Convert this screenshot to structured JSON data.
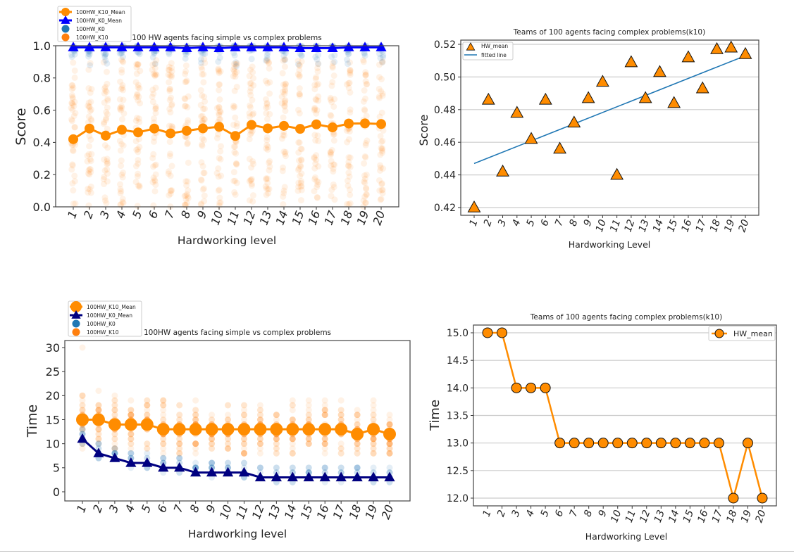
{
  "colors": {
    "orange": "#ff8c00",
    "scatter_orange": "#ff7f0e",
    "scatter_blue": "#1f77b4",
    "blue_mean_top": "#0000ff",
    "navy_mean_bottom": "#000080",
    "fit_line": "#1f77b4",
    "grid": "#cccccc"
  },
  "chart_data": [
    {
      "type": "line",
      "title": "100 HW agents facing simple vs complex problems",
      "xlabel": "Hardworking level",
      "ylabel": "Score",
      "ylim": [
        0,
        1
      ],
      "yticks": [
        "0.0",
        "0.2",
        "0.4",
        "0.6",
        "0.8",
        "1.0"
      ],
      "x": [
        "1",
        "2",
        "3",
        "4",
        "5",
        "6",
        "7",
        "8",
        "9",
        "10",
        "11",
        "12",
        "13",
        "14",
        "15",
        "16",
        "17",
        "18",
        "19",
        "20"
      ],
      "grid": false,
      "legend": "top-left outside",
      "legend_entries": [
        "100HW_K10_Mean",
        "100HW_K0_Mean",
        "100HW_K0",
        "100HW_K10"
      ],
      "series": [
        {
          "name": "100HW_K10_Mean",
          "values": [
            0.42,
            0.486,
            0.442,
            0.478,
            0.462,
            0.486,
            0.456,
            0.472,
            0.487,
            0.497,
            0.44,
            0.509,
            0.487,
            0.503,
            0.484,
            0.512,
            0.493,
            0.517,
            0.518,
            0.514
          ]
        },
        {
          "name": "100HW_K0_Mean",
          "values": [
            0.99,
            0.99,
            0.99,
            0.99,
            0.99,
            0.99,
            0.99,
            0.985,
            0.99,
            0.985,
            0.99,
            0.99,
            0.99,
            0.99,
            0.985,
            0.985,
            0.985,
            0.99,
            0.99,
            0.99
          ]
        }
      ],
      "scatter_series": [
        {
          "name": "100HW_K0",
          "range": [
            0.86,
            1.0
          ]
        },
        {
          "name": "100HW_K10",
          "range": [
            0.0,
            0.92
          ]
        }
      ]
    },
    {
      "type": "scatter",
      "title": "Teams of 100 agents facing complex problems(k10)",
      "xlabel": "Hardworking Level",
      "ylabel": "Score",
      "ylim": [
        0.415,
        0.523
      ],
      "yticks": [
        "0.42",
        "0.44",
        "0.46",
        "0.48",
        "0.50",
        "0.52"
      ],
      "x": [
        "1",
        "2",
        "3",
        "4",
        "5",
        "6",
        "7",
        "8",
        "9",
        "10",
        "11",
        "12",
        "13",
        "14",
        "15",
        "16",
        "17",
        "18",
        "19",
        "20"
      ],
      "grid": true,
      "legend": "top-left",
      "legend_entries": [
        "HW_mean",
        "fitted line"
      ],
      "series": [
        {
          "name": "HW_mean",
          "values": [
            0.42,
            0.486,
            0.442,
            0.478,
            0.462,
            0.486,
            0.456,
            0.472,
            0.487,
            0.497,
            0.44,
            0.509,
            0.487,
            0.503,
            0.484,
            0.512,
            0.493,
            0.517,
            0.518,
            0.514
          ]
        }
      ],
      "fitted_line": {
        "x": [
          1,
          20
        ],
        "y": [
          0.447,
          0.513
        ]
      }
    },
    {
      "type": "line",
      "title": "100HW agents facing simple vs complex problems",
      "xlabel": "Hardworking level",
      "ylabel": "Time",
      "ylim": [
        -1.5,
        31
      ],
      "yticks": [
        "0",
        "5",
        "10",
        "15",
        "20",
        "25",
        "30"
      ],
      "x": [
        "1",
        "2",
        "3",
        "4",
        "5",
        "6",
        "7",
        "8",
        "9",
        "10",
        "11",
        "12",
        "13",
        "14",
        "15",
        "16",
        "17",
        "18",
        "19",
        "20"
      ],
      "grid": false,
      "legend": "top-left outside",
      "legend_entries": [
        "100HW_K10_Mean",
        "100HW_K0_Mean",
        "100HW_K0",
        "100HW_K10"
      ],
      "series": [
        {
          "name": "100HW_K10_Mean",
          "values": [
            15,
            15,
            14,
            14,
            14,
            13,
            13,
            13,
            13,
            13,
            13,
            13,
            13,
            13,
            13,
            13,
            13,
            12,
            13,
            12
          ]
        },
        {
          "name": "100HW_K0_Mean",
          "values": [
            11,
            8,
            7,
            6,
            6,
            5,
            5,
            4,
            4,
            4,
            4,
            3,
            3,
            3,
            3,
            3,
            3,
            3,
            3,
            3
          ]
        }
      ],
      "scatter_series": [
        {
          "name": "100HW_K0",
          "range": [
            0,
            12
          ]
        },
        {
          "name": "100HW_K10",
          "range": [
            8,
            30
          ]
        }
      ]
    },
    {
      "type": "line",
      "title": "Teams of 100 agents facing complex problems(k10)",
      "xlabel": "Hardworking Level",
      "ylabel": "Time",
      "ylim": [
        11.87,
        15.13
      ],
      "yticks": [
        "12.0",
        "12.5",
        "13.0",
        "13.5",
        "14.0",
        "14.5",
        "15.0"
      ],
      "x": [
        "1",
        "2",
        "3",
        "4",
        "5",
        "6",
        "7",
        "8",
        "9",
        "10",
        "11",
        "12",
        "13",
        "14",
        "15",
        "16",
        "17",
        "18",
        "19",
        "20"
      ],
      "grid": true,
      "legend": "top-right",
      "legend_entries": [
        "HW_mean"
      ],
      "series": [
        {
          "name": "HW_mean",
          "values": [
            15,
            15,
            14,
            14,
            14,
            13,
            13,
            13,
            13,
            13,
            13,
            13,
            13,
            13,
            13,
            13,
            13,
            12,
            13,
            12
          ]
        }
      ]
    }
  ]
}
